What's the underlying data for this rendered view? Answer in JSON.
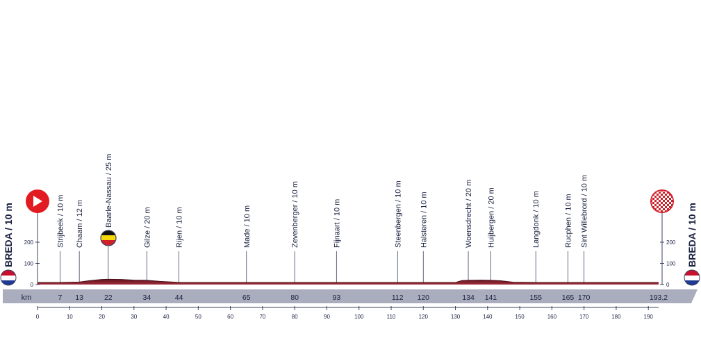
{
  "chart_data": {
    "type": "area",
    "start": {
      "label": "BREDA / 10 m",
      "icon": "start-arrow-icon",
      "flag": "netherlands-flag-icon"
    },
    "finish": {
      "label": "BREDA / 10 m",
      "icon": "finish-checkered-icon",
      "flag": "netherlands-flag-icon"
    },
    "km_label": "km",
    "total_km": "193,2",
    "xlim": [
      0,
      193.2
    ],
    "ylim": [
      0,
      250
    ],
    "y_ticks": [
      "0",
      "100",
      "200"
    ],
    "x_ticks": [
      "0",
      "10",
      "20",
      "30",
      "40",
      "50",
      "60",
      "70",
      "80",
      "90",
      "100",
      "110",
      "120",
      "130",
      "140",
      "150",
      "160",
      "170",
      "180",
      "190"
    ],
    "waypoints": [
      {
        "name": "Strijbeek / 10 m",
        "km": "7"
      },
      {
        "name": "Chaam / 12 m",
        "km": "13"
      },
      {
        "name": "Baarle-Nassau / 25 m",
        "km": "22",
        "flag": "belgium-flag-icon"
      },
      {
        "name": "Gilze / 20 m",
        "km": "34"
      },
      {
        "name": "Rijen / 10 m",
        "km": "44"
      },
      {
        "name": "Made / 10 m",
        "km": "65"
      },
      {
        "name": "Zevenberger / 10 m",
        "km": "80"
      },
      {
        "name": "Fijnaart / 10 m",
        "km": "93"
      },
      {
        "name": "Steenbergen / 10 m",
        "km": "112"
      },
      {
        "name": "Halsteren / 10 m",
        "km": "120"
      },
      {
        "name": "Woensdrecht / 20 m",
        "km": "134"
      },
      {
        "name": "Huijbergen / 20 m",
        "km": "141"
      },
      {
        "name": "Langdonk / 10 m",
        "km": "155"
      },
      {
        "name": "Rucphen / 10 m",
        "km": "165"
      },
      {
        "name": "Sint Willebrord / 10 m",
        "km": "170"
      }
    ],
    "elevation": {
      "x": [
        0,
        7,
        13,
        16,
        20,
        22,
        26,
        30,
        34,
        38,
        44,
        65,
        80,
        93,
        112,
        120,
        130,
        132,
        134,
        138,
        141,
        144,
        148,
        155,
        165,
        170,
        193.2
      ],
      "y": [
        10,
        10,
        12,
        18,
        24,
        25,
        24,
        21,
        20,
        15,
        10,
        10,
        10,
        10,
        10,
        10,
        10,
        19,
        20,
        21,
        20,
        18,
        11,
        10,
        10,
        10,
        10
      ]
    },
    "colors": {
      "profile_fill": "#8a2430",
      "profile_dark": "#5e1520",
      "km_band": "#a9adbd",
      "axis": "#3a4160",
      "text": "#1a2040",
      "start_red": "#e21a22"
    }
  }
}
